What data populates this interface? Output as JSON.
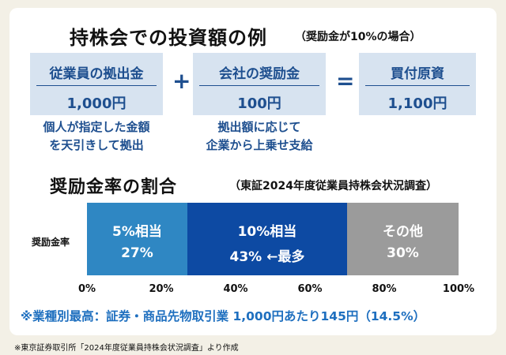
{
  "title": "持株会での投資額の例",
  "title_note": "（奨励金が10%の場合）",
  "boxes": [
    {
      "label": "従業員の拠出金",
      "value": "1,000円"
    },
    {
      "label": "会社の奨励金",
      "value": "100円"
    },
    {
      "label": "買付原資",
      "value": "1,100円"
    }
  ],
  "operators": {
    "plus": "+",
    "equals": "="
  },
  "notes": {
    "employee": [
      "個人が指定した金額",
      "を天引きして拠出"
    ],
    "company": [
      "拠出額に応じて",
      "企業から上乗せ支給"
    ]
  },
  "section_title": "奨励金率の割合",
  "section_note": "（東証2024年度従業員持株会状況調査）",
  "chart_data": {
    "type": "bar",
    "orientation": "horizontal",
    "stacked": true,
    "row_label": "奨励金率",
    "segments": [
      {
        "label": "5%相当",
        "value": 27,
        "value_label": "27%",
        "color": "#2f87c3"
      },
      {
        "label": "10%相当",
        "value": 43,
        "value_label": "43% ←最多",
        "color": "#0d4aa3"
      },
      {
        "label": "その他",
        "value": 30,
        "value_label": "30%",
        "color": "#9b9b9b"
      }
    ],
    "xlim": [
      0,
      100
    ],
    "ticks": [
      "0%",
      "20%",
      "40%",
      "60%",
      "80%",
      "100%"
    ]
  },
  "highlight": "※業種別最高：証券・商品先物取引業 1,000円あたり145円（14.5%）",
  "footer": "※東京証券取引所「2024年度従業員持株会状況調査」より作成"
}
